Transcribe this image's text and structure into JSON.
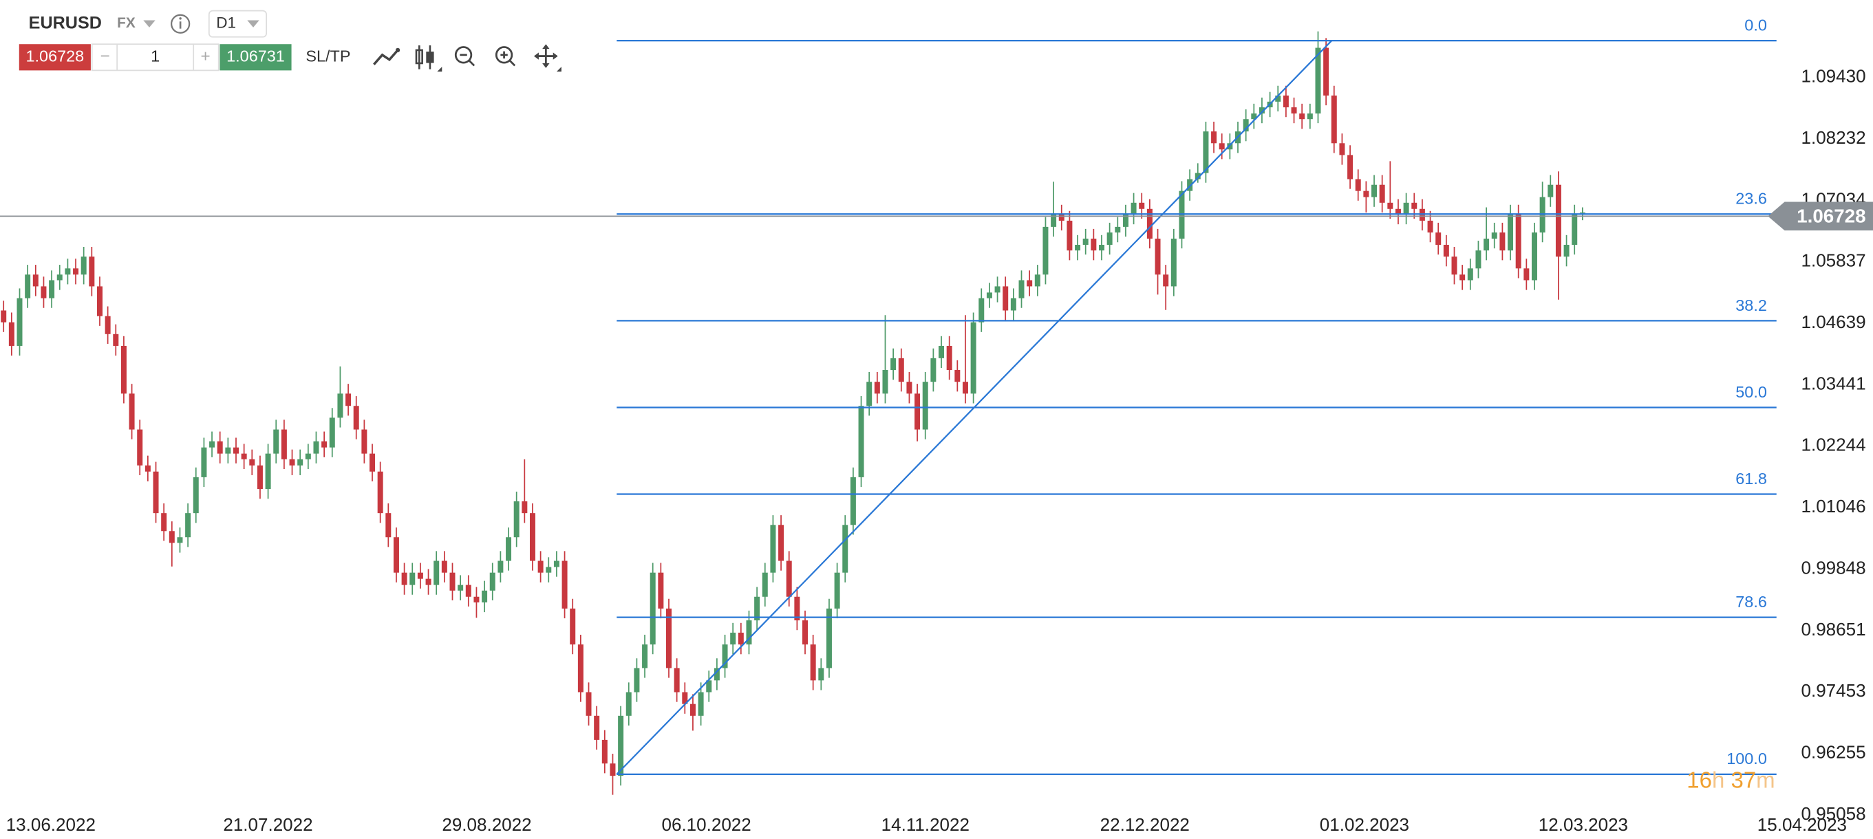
{
  "toolbar": {
    "symbol": "EURUSD",
    "market": "FX",
    "timeframe": "D1",
    "sell": "1.06728",
    "minus": "−",
    "quantity": "1",
    "plus": "+",
    "buy": "1.06731",
    "sltp": "SL/TP"
  },
  "chart_data": {
    "type": "candlestick",
    "xlim": [
      -0.447,
      233.24
    ],
    "ylim": [
      0.951,
      1.108
    ],
    "xticks": [
      {
        "value": 0.3,
        "label": "13.06.2022"
      },
      {
        "value": 27.4,
        "label": "21.07.2022"
      },
      {
        "value": 54.7,
        "label": "29.08.2022"
      },
      {
        "value": 82.1,
        "label": "06.10.2022"
      },
      {
        "value": 109.5,
        "label": "14.11.2022"
      },
      {
        "value": 136.8,
        "label": "22.12.2022"
      },
      {
        "value": 164.2,
        "label": "01.02.2023"
      },
      {
        "value": 191.5,
        "label": "12.03.2023"
      },
      {
        "value": 218.8,
        "label": "15.04.2023"
      }
    ],
    "yticks": [
      {
        "value": 1.0943,
        "label": "1.09430"
      },
      1.08232,
      1.07034,
      1.05837,
      1.04639,
      1.03441,
      1.02244,
      1.01046,
      0.99848,
      0.98651,
      0.97453,
      0.96255,
      0.95058
    ],
    "grid": true,
    "up_color": "#4e9a69",
    "down_color": "#c8383f",
    "current_price": 1.06728,
    "countdown": [
      "16",
      "h",
      " 37",
      "m"
    ],
    "fibonacci": {
      "color": "#2a78d6",
      "x": [
        76.5,
        221.2
      ],
      "levels": [
        {
          "label": "0.0",
          "price": 1.1015
        },
        {
          "label": "23.6",
          "price": 1.0677
        },
        {
          "label": "38.2",
          "price": 1.0469
        },
        {
          "label": "50.0",
          "price": 1.03
        },
        {
          "label": "61.8",
          "price": 1.0131
        },
        {
          "label": "78.6",
          "price": 0.9891
        },
        {
          "label": "100.0",
          "price": 0.9585
        }
      ]
    },
    "trendline": {
      "x": [
        76.5,
        165.7
      ],
      "y": [
        0.9585,
        1.1015
      ]
    },
    "ohlc": [
      [
        1.0489,
        1.0508,
        1.0447,
        1.0466
      ],
      [
        1.0466,
        1.0485,
        1.0401,
        1.042
      ],
      [
        1.042,
        1.0532,
        1.0401,
        1.0513
      ],
      [
        1.0513,
        1.0578,
        1.0494,
        1.0559
      ],
      [
        1.0559,
        1.0578,
        1.0517,
        1.0536
      ],
      [
        1.0536,
        1.0555,
        1.0494,
        1.0513
      ],
      [
        1.0513,
        1.0567,
        1.0494,
        1.0548
      ],
      [
        1.0548,
        1.0578,
        1.0529,
        1.0559
      ],
      [
        1.0559,
        1.059,
        1.054,
        1.0571
      ],
      [
        1.0571,
        1.059,
        1.054,
        1.0559
      ],
      [
        1.0559,
        1.0613,
        1.054,
        1.0594
      ],
      [
        1.0594,
        1.0613,
        1.0517,
        1.0536
      ],
      [
        1.0536,
        1.0555,
        1.0459,
        1.0478
      ],
      [
        1.0478,
        1.0497,
        1.0424,
        1.0443
      ],
      [
        1.0443,
        1.0462,
        1.0401,
        1.042
      ],
      [
        1.042,
        1.0439,
        1.0308,
        1.0327
      ],
      [
        1.0327,
        1.0346,
        1.0238,
        1.0257
      ],
      [
        1.0257,
        1.0276,
        1.0168,
        1.0187
      ],
      [
        1.0187,
        1.0206,
        1.0156,
        1.0175
      ],
      [
        1.0175,
        1.0194,
        1.0075,
        1.0094
      ],
      [
        1.0094,
        1.0113,
        1.004,
        1.0059
      ],
      [
        1.0059,
        1.0078,
        0.999,
        1.0036
      ],
      [
        1.0036,
        1.0066,
        1.0017,
        1.0047
      ],
      [
        1.0047,
        1.0113,
        1.0028,
        1.0094
      ],
      [
        1.0094,
        1.0183,
        1.0075,
        1.0164
      ],
      [
        1.0164,
        1.0241,
        1.0145,
        1.0222
      ],
      [
        1.0222,
        1.0253,
        1.0203,
        1.0234
      ],
      [
        1.0234,
        1.0253,
        1.0191,
        1.021
      ],
      [
        1.021,
        1.0241,
        1.0191,
        1.0222
      ],
      [
        1.0222,
        1.0241,
        1.0191,
        1.021
      ],
      [
        1.021,
        1.0229,
        1.018,
        1.0199
      ],
      [
        1.0199,
        1.0218,
        1.0168,
        1.0187
      ],
      [
        1.0187,
        1.0206,
        1.0122,
        1.0141
      ],
      [
        1.0141,
        1.0229,
        1.0122,
        1.021
      ],
      [
        1.021,
        1.0276,
        1.0191,
        1.0257
      ],
      [
        1.0257,
        1.0276,
        1.018,
        1.0199
      ],
      [
        1.0199,
        1.0218,
        1.0168,
        1.0187
      ],
      [
        1.0187,
        1.0218,
        1.0168,
        1.0199
      ],
      [
        1.0199,
        1.0229,
        1.018,
        1.021
      ],
      [
        1.021,
        1.0253,
        1.0191,
        1.0234
      ],
      [
        1.0234,
        1.0253,
        1.0203,
        1.0222
      ],
      [
        1.0222,
        1.0299,
        1.0203,
        1.028
      ],
      [
        1.028,
        1.038,
        1.0261,
        1.0327
      ],
      [
        1.0327,
        1.0346,
        1.0284,
        1.0303
      ],
      [
        1.0303,
        1.0322,
        1.0238,
        1.0257
      ],
      [
        1.0257,
        1.0276,
        1.0191,
        1.021
      ],
      [
        1.021,
        1.0229,
        1.0156,
        1.0175
      ],
      [
        1.0175,
        1.0194,
        1.0075,
        1.0094
      ],
      [
        1.0094,
        1.0113,
        1.0028,
        1.0047
      ],
      [
        1.0047,
        1.0066,
        0.9959,
        0.9978
      ],
      [
        0.9978,
        0.9997,
        0.9935,
        0.9954
      ],
      [
        0.9954,
        0.9997,
        0.9935,
        0.9978
      ],
      [
        0.9978,
        0.9997,
        0.9947,
        0.9966
      ],
      [
        0.9966,
        0.9985,
        0.9935,
        0.9954
      ],
      [
        0.9954,
        1.002,
        0.9935,
        1.0001
      ],
      [
        1.0001,
        1.002,
        0.9959,
        0.9978
      ],
      [
        0.9978,
        0.9997,
        0.9924,
        0.9943
      ],
      [
        0.9943,
        0.9973,
        0.9924,
        0.9954
      ],
      [
        0.9954,
        0.9973,
        0.9912,
        0.9931
      ],
      [
        0.9931,
        0.995,
        0.989,
        0.992
      ],
      [
        0.992,
        0.9962,
        0.9901,
        0.9943
      ],
      [
        0.9943,
        0.9997,
        0.9924,
        0.9978
      ],
      [
        0.9978,
        1.002,
        0.9959,
        1.0001
      ],
      [
        1.0001,
        1.0066,
        0.9982,
        1.0047
      ],
      [
        1.0047,
        1.0136,
        1.0028,
        1.0117
      ],
      [
        1.0117,
        1.0199,
        1.0075,
        1.0094
      ],
      [
        1.0094,
        1.0113,
        0.9982,
        1.0001
      ],
      [
        1.0001,
        1.002,
        0.9959,
        0.9978
      ],
      [
        0.9978,
        1.0008,
        0.9959,
        0.9989
      ],
      [
        0.9989,
        1.002,
        0.997,
        1.0001
      ],
      [
        1.0001,
        1.002,
        0.9889,
        0.9908
      ],
      [
        0.9908,
        0.9927,
        0.9819,
        0.9838
      ],
      [
        0.9838,
        0.9857,
        0.9726,
        0.9745
      ],
      [
        0.9745,
        0.9764,
        0.968,
        0.9699
      ],
      [
        0.9699,
        0.9718,
        0.9633,
        0.9652
      ],
      [
        0.9652,
        0.9671,
        0.9587,
        0.9606
      ],
      [
        0.9606,
        0.9625,
        0.9545,
        0.9582
      ],
      [
        0.9582,
        0.9718,
        0.9563,
        0.9699
      ],
      [
        0.9699,
        0.9764,
        0.968,
        0.9745
      ],
      [
        0.9745,
        0.9811,
        0.9726,
        0.9792
      ],
      [
        0.9792,
        0.9857,
        0.9773,
        0.9838
      ],
      [
        0.9838,
        0.9997,
        0.9819,
        0.9978
      ],
      [
        0.9978,
        0.9997,
        0.9889,
        0.9908
      ],
      [
        0.9908,
        0.9927,
        0.9773,
        0.9792
      ],
      [
        0.9792,
        0.9811,
        0.9726,
        0.9745
      ],
      [
        0.9745,
        0.9764,
        0.9703,
        0.9722
      ],
      [
        0.9722,
        0.9741,
        0.967,
        0.9699
      ],
      [
        0.9699,
        0.9764,
        0.968,
        0.9745
      ],
      [
        0.9745,
        0.9787,
        0.9726,
        0.9768
      ],
      [
        0.9768,
        0.9811,
        0.9749,
        0.9792
      ],
      [
        0.9792,
        0.9857,
        0.9773,
        0.9838
      ],
      [
        0.9838,
        0.988,
        0.9819,
        0.9861
      ],
      [
        0.9861,
        0.988,
        0.9819,
        0.9838
      ],
      [
        0.9838,
        0.9904,
        0.9819,
        0.9885
      ],
      [
        0.9885,
        0.995,
        0.9866,
        0.9931
      ],
      [
        0.9931,
        0.9997,
        0.9912,
        0.9978
      ],
      [
        0.9978,
        1.009,
        0.9959,
        1.0071
      ],
      [
        1.0071,
        1.009,
        0.9982,
        1.0001
      ],
      [
        1.0001,
        1.002,
        0.9912,
        0.9931
      ],
      [
        0.9931,
        0.995,
        0.9866,
        0.9885
      ],
      [
        0.9885,
        0.9904,
        0.9819,
        0.9838
      ],
      [
        0.9838,
        0.9857,
        0.9749,
        0.9768
      ],
      [
        0.9768,
        0.9811,
        0.9749,
        0.9792
      ],
      [
        0.9792,
        0.9927,
        0.9773,
        0.9908
      ],
      [
        0.9908,
        0.9997,
        0.9889,
        0.9978
      ],
      [
        0.9978,
        1.009,
        0.9959,
        1.0071
      ],
      [
        1.0071,
        1.0183,
        1.0052,
        1.0164
      ],
      [
        1.0164,
        1.0322,
        1.0145,
        1.0303
      ],
      [
        1.0303,
        1.0369,
        1.0284,
        1.035
      ],
      [
        1.035,
        1.0369,
        1.0308,
        1.0327
      ],
      [
        1.0327,
        1.048,
        1.0308,
        1.0373
      ],
      [
        1.0373,
        1.0415,
        1.0354,
        1.0396
      ],
      [
        1.0396,
        1.0415,
        1.0331,
        1.035
      ],
      [
        1.035,
        1.0369,
        1.0308,
        1.0327
      ],
      [
        1.0327,
        1.0346,
        1.0234,
        1.0257
      ],
      [
        1.0257,
        1.0369,
        1.0238,
        1.035
      ],
      [
        1.035,
        1.0415,
        1.0331,
        1.0396
      ],
      [
        1.0396,
        1.0439,
        1.0377,
        1.042
      ],
      [
        1.042,
        1.0439,
        1.0354,
        1.0373
      ],
      [
        1.0373,
        1.0392,
        1.0331,
        1.035
      ],
      [
        1.035,
        1.048,
        1.0308,
        1.0327
      ],
      [
        1.0327,
        1.0485,
        1.0308,
        1.0466
      ],
      [
        1.0466,
        1.0532,
        1.0447,
        1.0513
      ],
      [
        1.0513,
        1.0543,
        1.0494,
        1.0524
      ],
      [
        1.0524,
        1.0555,
        1.0505,
        1.0536
      ],
      [
        1.0536,
        1.0555,
        1.047,
        1.0489
      ],
      [
        1.0489,
        1.0532,
        1.047,
        1.0513
      ],
      [
        1.0513,
        1.0567,
        1.0494,
        1.0548
      ],
      [
        1.0548,
        1.0567,
        1.0517,
        1.0536
      ],
      [
        1.0536,
        1.0578,
        1.0517,
        1.0559
      ],
      [
        1.0559,
        1.0671,
        1.054,
        1.0652
      ],
      [
        1.0652,
        1.074,
        1.0633,
        1.0676
      ],
      [
        1.0676,
        1.0695,
        1.0645,
        1.0664
      ],
      [
        1.0664,
        1.0683,
        1.0587,
        1.0606
      ],
      [
        1.0606,
        1.0636,
        1.0587,
        1.0617
      ],
      [
        1.0617,
        1.0648,
        1.0598,
        1.0629
      ],
      [
        1.0629,
        1.0648,
        1.0587,
        1.0606
      ],
      [
        1.0606,
        1.0636,
        1.0587,
        1.0617
      ],
      [
        1.0617,
        1.066,
        1.0598,
        1.0641
      ],
      [
        1.0641,
        1.0671,
        1.0622,
        1.0652
      ],
      [
        1.0652,
        1.0695,
        1.0633,
        1.0676
      ],
      [
        1.0676,
        1.0718,
        1.0657,
        1.0699
      ],
      [
        1.0699,
        1.0718,
        1.0668,
        1.0687
      ],
      [
        1.0687,
        1.0706,
        1.061,
        1.0629
      ],
      [
        1.0629,
        1.0648,
        1.052,
        1.0559
      ],
      [
        1.0559,
        1.0578,
        1.049,
        1.0536
      ],
      [
        1.0536,
        1.0648,
        1.0517,
        1.0629
      ],
      [
        1.0629,
        1.0741,
        1.061,
        1.0722
      ],
      [
        1.0722,
        1.0764,
        1.0703,
        1.0745
      ],
      [
        1.0745,
        1.0776,
        1.0738,
        1.0757
      ],
      [
        1.0757,
        1.0857,
        1.0738,
        1.0838
      ],
      [
        1.0838,
        1.0857,
        1.0796,
        1.0815
      ],
      [
        1.0815,
        1.0834,
        1.0784,
        1.0803
      ],
      [
        1.0803,
        1.0834,
        1.0784,
        1.0815
      ],
      [
        1.0815,
        1.0857,
        1.0796,
        1.0838
      ],
      [
        1.0838,
        1.0881,
        1.0819,
        1.0862
      ],
      [
        1.0862,
        1.0892,
        1.0843,
        1.0873
      ],
      [
        1.0873,
        1.0904,
        1.0854,
        1.0885
      ],
      [
        1.0885,
        1.0915,
        1.0866,
        1.0896
      ],
      [
        1.0896,
        1.0927,
        1.0877,
        1.0908
      ],
      [
        1.0908,
        1.0927,
        1.0866,
        1.0885
      ],
      [
        1.0885,
        1.0904,
        1.0854,
        1.0873
      ],
      [
        1.0873,
        1.0892,
        1.0843,
        1.0862
      ],
      [
        1.0862,
        1.0892,
        1.0843,
        1.0873
      ],
      [
        1.0873,
        1.1033,
        1.0854,
        1.1001
      ],
      [
        1.1001,
        1.102,
        1.0889,
        1.0908
      ],
      [
        1.0908,
        1.0927,
        1.0796,
        1.0815
      ],
      [
        1.0815,
        1.0834,
        1.0773,
        1.0792
      ],
      [
        1.0792,
        1.0811,
        1.0726,
        1.0745
      ],
      [
        1.0745,
        1.0764,
        1.0703,
        1.0722
      ],
      [
        1.0722,
        1.0741,
        1.068,
        1.071
      ],
      [
        1.071,
        1.0753,
        1.0691,
        1.0734
      ],
      [
        1.0734,
        1.0753,
        1.068,
        1.0699
      ],
      [
        1.0699,
        1.078,
        1.0668,
        1.0687
      ],
      [
        1.0687,
        1.0706,
        1.0657,
        1.0676
      ],
      [
        1.0676,
        1.0718,
        1.0657,
        1.0699
      ],
      [
        1.0699,
        1.0718,
        1.0668,
        1.0687
      ],
      [
        1.0687,
        1.0706,
        1.0645,
        1.0664
      ],
      [
        1.0664,
        1.0683,
        1.0622,
        1.0641
      ],
      [
        1.0641,
        1.066,
        1.0598,
        1.0617
      ],
      [
        1.0617,
        1.0636,
        1.0575,
        1.0594
      ],
      [
        1.0594,
        1.0613,
        1.054,
        1.0559
      ],
      [
        1.0559,
        1.0578,
        1.0529,
        1.0548
      ],
      [
        1.0548,
        1.059,
        1.0529,
        1.0571
      ],
      [
        1.0571,
        1.0625,
        1.0552,
        1.0606
      ],
      [
        1.0606,
        1.069,
        1.0587,
        1.0629
      ],
      [
        1.0629,
        1.066,
        1.061,
        1.0641
      ],
      [
        1.0641,
        1.066,
        1.0587,
        1.0606
      ],
      [
        1.0606,
        1.0695,
        1.0587,
        1.0676
      ],
      [
        1.0676,
        1.0695,
        1.0552,
        1.0571
      ],
      [
        1.0571,
        1.059,
        1.0529,
        1.0548
      ],
      [
        1.0548,
        1.066,
        1.0529,
        1.0641
      ],
      [
        1.0641,
        1.074,
        1.0622,
        1.071
      ],
      [
        1.071,
        1.0753,
        1.0691,
        1.0734
      ],
      [
        1.0734,
        1.076,
        1.051,
        1.0594
      ],
      [
        1.0594,
        1.0636,
        1.0575,
        1.0617
      ],
      [
        1.0617,
        1.0695,
        1.0598,
        1.0676
      ],
      [
        1.0676,
        1.069,
        1.0665,
        1.068
      ]
    ]
  }
}
